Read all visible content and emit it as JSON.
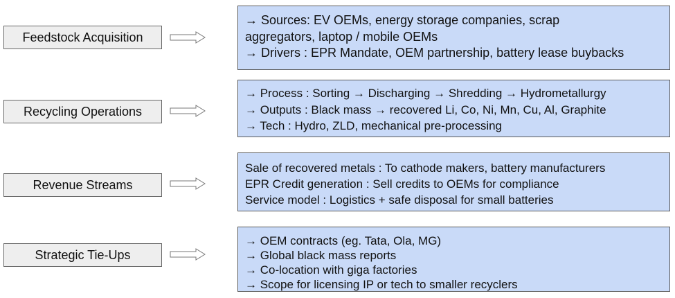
{
  "rows": [
    {
      "label": "Feedstock Acquisition",
      "lines": [
        "→ Sources: EV OEMs, energy storage companies, scrap",
        "aggregators, laptop / mobile OEMs",
        "→ Drivers : EPR Mandate, OEM partnership, battery lease buybacks"
      ]
    },
    {
      "label": "Recycling Operations",
      "lines": [
        "→ Process : Sorting → Discharging → Shredding → Hydrometallurgy",
        "→ Outputs : Black mass → recovered Li, Co, Ni, Mn, Cu, Al, Graphite",
        "→ Tech : Hydro, ZLD, mechanical pre-processing"
      ]
    },
    {
      "label": "Revenue Streams",
      "lines": [
        "Sale of recovered metals : To cathode makers, battery manufacturers",
        "EPR Credit generation : Sell credits to OEMs for compliance",
        "Service model : Logistics + safe disposal for small batteries"
      ]
    },
    {
      "label": "Strategic Tie-Ups",
      "lines": [
        "→ OEM contracts (eg. Tata, Ola, MG)",
        "→ Global black mass reports",
        "→ Co-location with giga factories",
        "→ Scope for licensing IP or tech to smaller recyclers"
      ]
    }
  ],
  "colors": {
    "stage_fill": "#eeeeee",
    "detail_fill": "#c9daf8",
    "border": "#595959"
  }
}
